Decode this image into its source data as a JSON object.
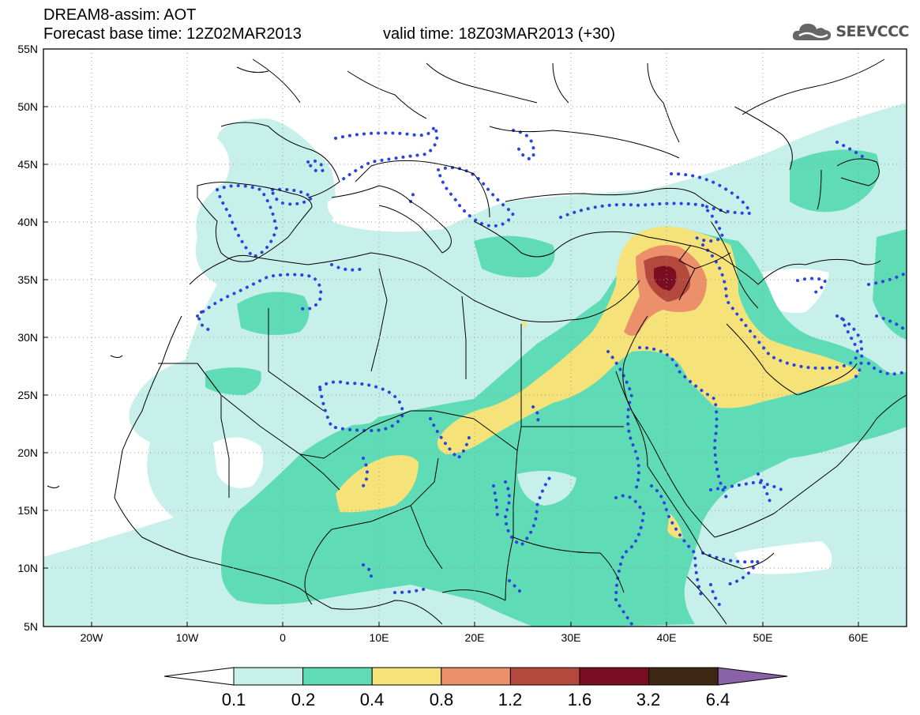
{
  "header": {
    "line1": "DREAM8-assim: AOT",
    "line2": "Forecast base time: 12Z02MAR2013",
    "valid": "valid time: 18Z03MAR2013 (+30)"
  },
  "logo": {
    "text": "SEEVCCC",
    "icon": "cloud-icon"
  },
  "map": {
    "region": "North Africa, Europe and Middle East",
    "lat_labels": [
      "55N",
      "50N",
      "45N",
      "40N",
      "35N",
      "30N",
      "25N",
      "20N",
      "15N",
      "10N",
      "5N"
    ],
    "lon_labels": [
      "20W",
      "10W",
      "0",
      "10E",
      "20E",
      "30E",
      "40E",
      "50E",
      "60E"
    ],
    "lat_range": [
      5,
      55
    ],
    "lon_range": [
      -25,
      65
    ],
    "grid": "dotted",
    "overlay": "blue dotted contours"
  },
  "colorbar": {
    "labels": [
      "0.1",
      "0.2",
      "0.4",
      "0.8",
      "1.2",
      "1.6",
      "3.2",
      "6.4"
    ],
    "colors": [
      "#ffffff",
      "#c8f0ea",
      "#5fdcb6",
      "#f5e37a",
      "#ec8f6b",
      "#b5483c",
      "#7a0d22",
      "#3e2814",
      "#8a62a8"
    ]
  }
}
